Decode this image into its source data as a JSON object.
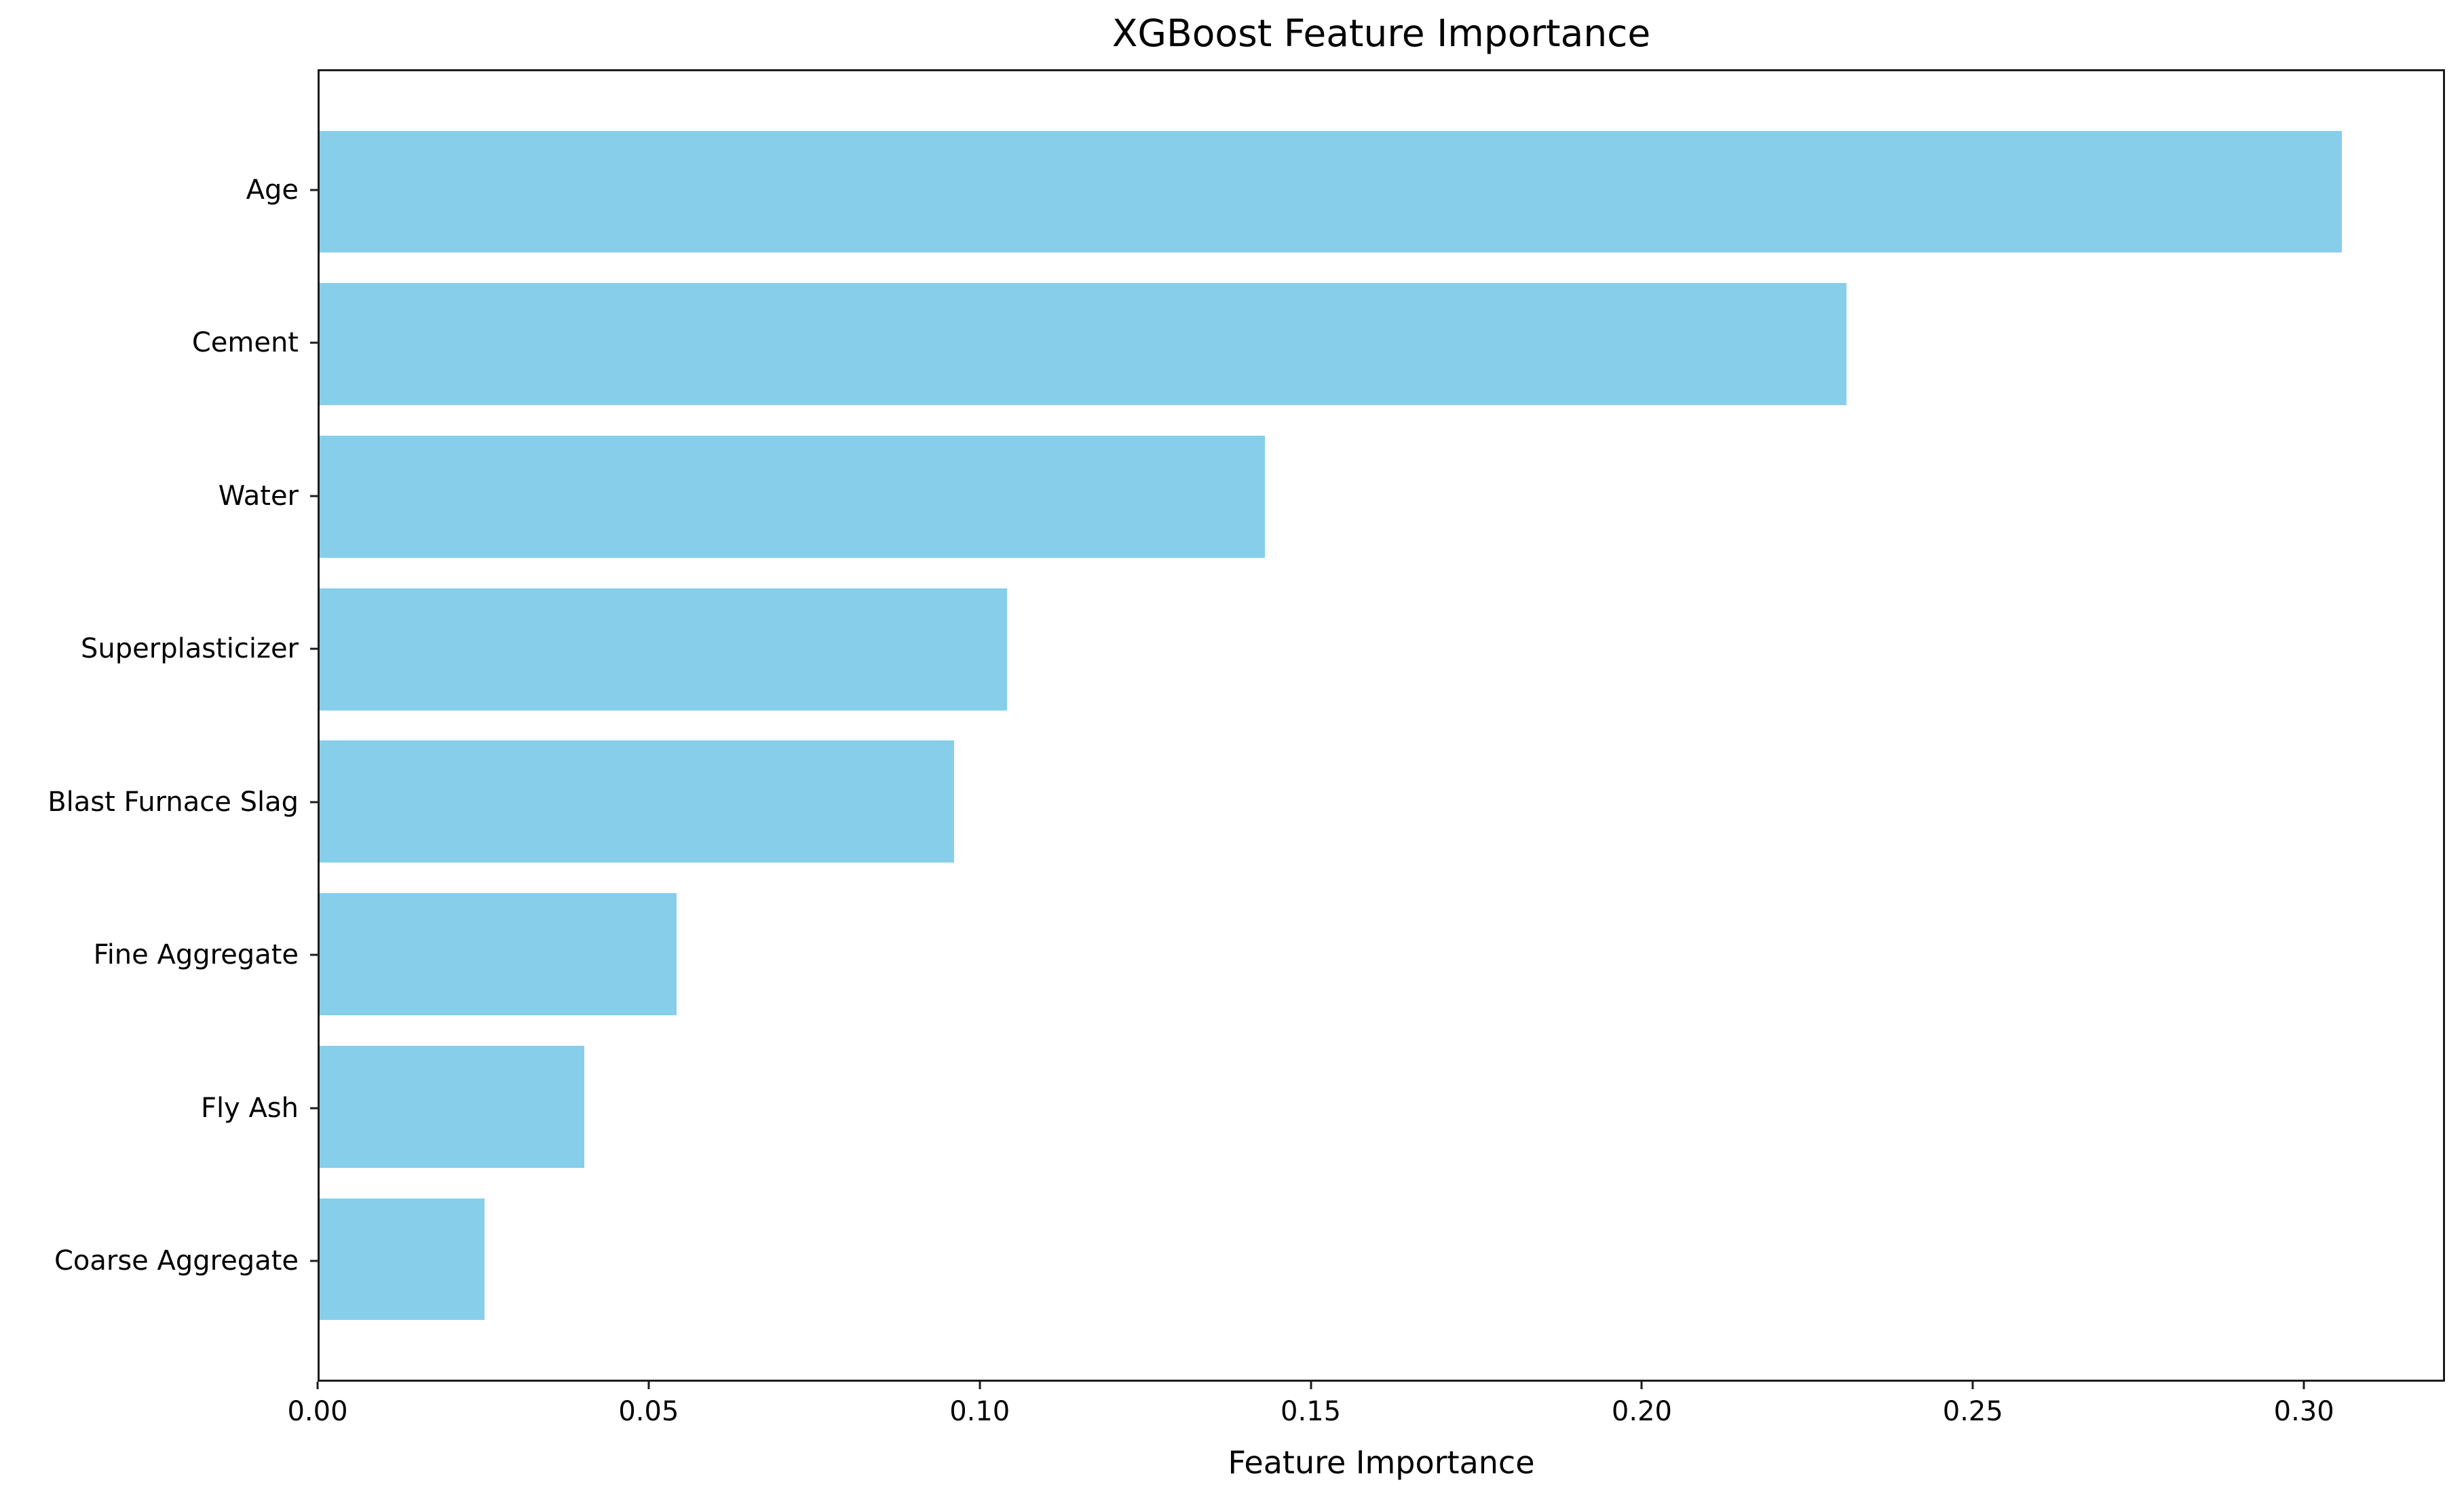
{
  "chart_data": {
    "type": "bar",
    "orientation": "horizontal",
    "title": "XGBoost Feature Importance",
    "xlabel": "Feature Importance",
    "ylabel": "",
    "categories": [
      "Age",
      "Cement",
      "Water",
      "Superplasticizer",
      "Blast Furnace Slag",
      "Fine Aggregate",
      "Fly Ash",
      "Coarse Aggregate"
    ],
    "values": [
      0.306,
      0.231,
      0.143,
      0.104,
      0.096,
      0.054,
      0.04,
      0.025
    ],
    "x_ticks": [
      0.0,
      0.05,
      0.1,
      0.15,
      0.2,
      0.25,
      0.3
    ],
    "x_tick_labels": [
      "0.00",
      "0.05",
      "0.10",
      "0.15",
      "0.20",
      "0.25",
      "0.30"
    ],
    "xlim": [
      0,
      0.3213
    ],
    "bar_color": "#87CEEB",
    "bar_thickness_fraction": 0.8,
    "grid": false,
    "legend": null
  }
}
